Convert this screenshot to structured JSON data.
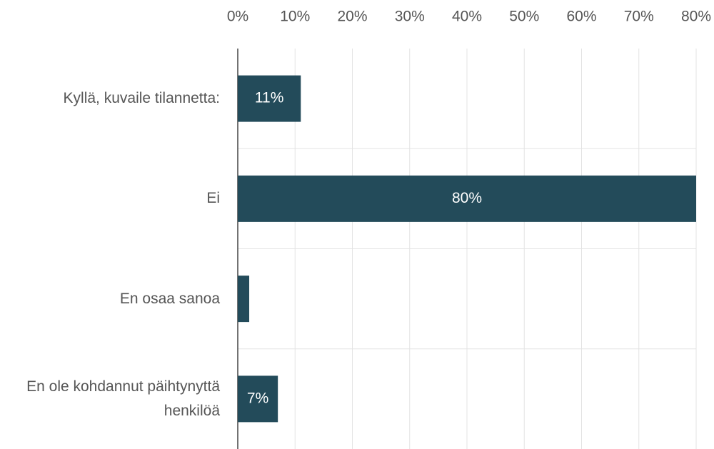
{
  "chart_data": {
    "type": "barh",
    "categories": [
      "Kyllä, kuvaile tilannetta:",
      "Ei",
      "En osaa sanoa",
      "En ole kohdannut päihtynyttä henkilöä"
    ],
    "values": [
      11,
      80,
      2,
      7
    ],
    "value_labels": [
      "11%",
      "80%",
      null,
      "7%"
    ],
    "color": "#234b5a",
    "xlim": [
      0,
      80
    ],
    "xticks": [
      {
        "value": 0,
        "label": "0%"
      },
      {
        "value": 10,
        "label": "10%"
      },
      {
        "value": 20,
        "label": "20%"
      },
      {
        "value": 30,
        "label": "30%"
      },
      {
        "value": 40,
        "label": "40%"
      },
      {
        "value": 50,
        "label": "50%"
      },
      {
        "value": 60,
        "label": "60%"
      },
      {
        "value": 70,
        "label": "70%"
      },
      {
        "value": 80,
        "label": "80%"
      }
    ],
    "grid": true
  }
}
